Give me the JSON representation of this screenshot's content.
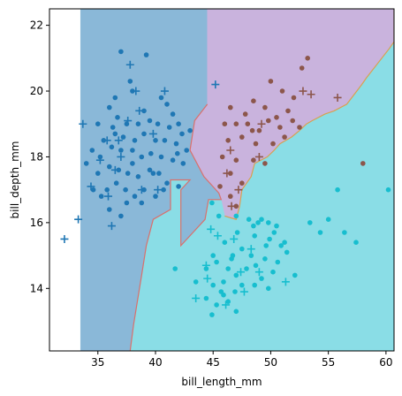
{
  "chart_data": {
    "type": "scatter",
    "title": "",
    "xlabel": "bill_length_mm",
    "ylabel": "bill_depth_mm",
    "xlim": [
      30.8,
      60.7
    ],
    "ylim": [
      12.1,
      22.5
    ],
    "x_ticks": [
      35,
      40,
      45,
      50,
      55,
      60
    ],
    "y_ticks": [
      14,
      16,
      18,
      20,
      22
    ],
    "grid": false,
    "legend": "none",
    "decision_regions": [
      {
        "color": "#8ab8d8",
        "polygon": [
          [
            33.5,
            12.1
          ],
          [
            33.5,
            22.5
          ],
          [
            44.5,
            22.5
          ],
          [
            44.5,
            19.6
          ],
          [
            43.4,
            19.1
          ],
          [
            43.0,
            18.2
          ],
          [
            44.2,
            17.4
          ],
          [
            45.5,
            16.9
          ],
          [
            45.7,
            16.7
          ],
          [
            44.6,
            16.7
          ],
          [
            44.3,
            16.1
          ],
          [
            42.2,
            15.3
          ],
          [
            42.2,
            17.0
          ],
          [
            43.0,
            17.3
          ],
          [
            41.3,
            17.3
          ],
          [
            41.3,
            16.4
          ],
          [
            39.8,
            16.1
          ],
          [
            39.2,
            15.3
          ],
          [
            38.8,
            14.4
          ],
          [
            38.1,
            12.9
          ],
          [
            37.8,
            12.1
          ]
        ]
      },
      {
        "color": "#c9b3dd",
        "polygon": [
          [
            44.5,
            22.5
          ],
          [
            46.5,
            22.5
          ],
          [
            46.7,
            22.5
          ],
          [
            60.7,
            22.5
          ],
          [
            60.7,
            21.5
          ],
          [
            60.3,
            21.3
          ],
          [
            58.3,
            20.4
          ],
          [
            57.9,
            20.2
          ],
          [
            56.6,
            19.6
          ],
          [
            55.5,
            19.4
          ],
          [
            54.7,
            19.3
          ],
          [
            53.6,
            19.1
          ],
          [
            53.1,
            19.0
          ],
          [
            52.5,
            18.8
          ],
          [
            51.8,
            18.6
          ],
          [
            50.8,
            18.4
          ],
          [
            50.3,
            18.2
          ],
          [
            49.7,
            18.0
          ],
          [
            48.6,
            17.8
          ],
          [
            48.3,
            17.4
          ],
          [
            47.5,
            17.0
          ],
          [
            47.3,
            16.5
          ],
          [
            47.0,
            16.1
          ],
          [
            46.0,
            16.2
          ],
          [
            45.5,
            16.9
          ],
          [
            44.2,
            17.4
          ],
          [
            43.0,
            18.2
          ],
          [
            43.4,
            19.1
          ],
          [
            44.5,
            19.6
          ]
        ]
      },
      {
        "color": "#8adde6",
        "polygon": [
          [
            37.8,
            12.1
          ],
          [
            38.1,
            12.9
          ],
          [
            38.8,
            14.4
          ],
          [
            39.2,
            15.3
          ],
          [
            39.8,
            16.1
          ],
          [
            41.3,
            16.4
          ],
          [
            41.3,
            17.3
          ],
          [
            43.0,
            17.3
          ],
          [
            42.2,
            17.0
          ],
          [
            42.2,
            15.3
          ],
          [
            44.3,
            16.1
          ],
          [
            44.6,
            16.7
          ],
          [
            45.7,
            16.7
          ],
          [
            46.0,
            16.2
          ],
          [
            47.0,
            16.1
          ],
          [
            47.3,
            16.5
          ],
          [
            47.5,
            17.0
          ],
          [
            48.3,
            17.4
          ],
          [
            48.6,
            17.8
          ],
          [
            49.7,
            18.0
          ],
          [
            50.3,
            18.2
          ],
          [
            50.8,
            18.4
          ],
          [
            51.8,
            18.6
          ],
          [
            52.5,
            18.8
          ],
          [
            53.1,
            19.0
          ],
          [
            53.6,
            19.1
          ],
          [
            54.7,
            19.3
          ],
          [
            55.5,
            19.4
          ],
          [
            56.6,
            19.6
          ],
          [
            57.9,
            20.2
          ],
          [
            58.3,
            20.4
          ],
          [
            60.3,
            21.3
          ],
          [
            60.7,
            21.5
          ],
          [
            60.7,
            12.1
          ]
        ]
      }
    ],
    "series": [
      {
        "color": "#1f77b4",
        "points_dot": [
          [
            37.0,
            21.2
          ],
          [
            39.2,
            21.1
          ],
          [
            37.8,
            20.3
          ],
          [
            36.5,
            19.8
          ],
          [
            38.0,
            20.0
          ],
          [
            40.5,
            19.8
          ],
          [
            41.0,
            19.6
          ],
          [
            36.0,
            19.5
          ],
          [
            39.0,
            19.4
          ],
          [
            41.5,
            19.3
          ],
          [
            42.0,
            19.0
          ],
          [
            43.0,
            18.8
          ],
          [
            35.0,
            19.0
          ],
          [
            36.7,
            19.2
          ],
          [
            37.5,
            19.0
          ],
          [
            38.5,
            19.0
          ],
          [
            39.5,
            19.1
          ],
          [
            40.2,
            19.0
          ],
          [
            41.2,
            18.9
          ],
          [
            42.3,
            18.7
          ],
          [
            35.5,
            18.5
          ],
          [
            36.5,
            18.7
          ],
          [
            37.2,
            18.6
          ],
          [
            38.2,
            18.5
          ],
          [
            39.0,
            18.7
          ],
          [
            40.0,
            18.5
          ],
          [
            40.8,
            18.5
          ],
          [
            41.8,
            18.4
          ],
          [
            42.7,
            18.2
          ],
          [
            34.5,
            18.2
          ],
          [
            35.2,
            18.0
          ],
          [
            36.2,
            18.3
          ],
          [
            37.0,
            18.2
          ],
          [
            38.0,
            18.2
          ],
          [
            38.8,
            18.0
          ],
          [
            39.6,
            18.1
          ],
          [
            40.5,
            18.0
          ],
          [
            41.5,
            17.9
          ],
          [
            42.4,
            17.8
          ],
          [
            34.0,
            17.8
          ],
          [
            35.0,
            17.5
          ],
          [
            36.0,
            17.7
          ],
          [
            36.8,
            17.6
          ],
          [
            37.6,
            17.5
          ],
          [
            38.5,
            17.4
          ],
          [
            39.5,
            17.6
          ],
          [
            40.3,
            17.5
          ],
          [
            41.0,
            17.2
          ],
          [
            42.0,
            17.1
          ],
          [
            34.6,
            17.0
          ],
          [
            35.8,
            17.0
          ],
          [
            36.6,
            17.2
          ],
          [
            37.4,
            17.0
          ],
          [
            38.2,
            16.8
          ],
          [
            39.0,
            17.0
          ],
          [
            40.0,
            16.8
          ],
          [
            36.0,
            16.4
          ],
          [
            37.5,
            16.6
          ],
          [
            38.8,
            16.6
          ],
          [
            39.8,
            17.5
          ],
          [
            40.7,
            17.0
          ],
          [
            38.0,
            17.8
          ],
          [
            41.9,
            18.1
          ],
          [
            36.3,
            18.9
          ],
          [
            35.3,
            16.8
          ],
          [
            37.0,
            16.2
          ]
        ],
        "points_plus": [
          [
            37.8,
            20.8
          ],
          [
            38.3,
            20.0
          ],
          [
            40.8,
            20.0
          ],
          [
            37.6,
            19.1
          ],
          [
            38.6,
            19.4
          ],
          [
            33.7,
            19.0
          ],
          [
            35.8,
            18.5
          ],
          [
            36.8,
            18.5
          ],
          [
            37.0,
            18.0
          ],
          [
            35.2,
            17.9
          ],
          [
            36.5,
            17.6
          ],
          [
            38.8,
            17.0
          ],
          [
            40.2,
            17.0
          ],
          [
            34.4,
            17.1
          ],
          [
            35.9,
            16.8
          ],
          [
            33.3,
            16.1
          ],
          [
            36.2,
            15.9
          ],
          [
            32.1,
            15.5
          ],
          [
            45.2,
            20.2
          ],
          [
            39.8,
            18.7
          ]
        ]
      },
      {
        "color": "#8c564b",
        "points_dot": [
          [
            53.2,
            21.0
          ],
          [
            52.7,
            20.7
          ],
          [
            50.0,
            20.3
          ],
          [
            51.0,
            20.0
          ],
          [
            52.0,
            19.8
          ],
          [
            48.5,
            19.7
          ],
          [
            49.5,
            19.5
          ],
          [
            51.5,
            19.4
          ],
          [
            46.5,
            19.5
          ],
          [
            47.0,
            19.0
          ],
          [
            48.0,
            19.0
          ],
          [
            49.8,
            19.1
          ],
          [
            50.8,
            18.9
          ],
          [
            52.5,
            18.9
          ],
          [
            46.3,
            18.5
          ],
          [
            47.5,
            18.6
          ],
          [
            48.7,
            18.4
          ],
          [
            50.2,
            18.4
          ],
          [
            51.2,
            18.6
          ],
          [
            45.8,
            18.0
          ],
          [
            47.0,
            17.9
          ],
          [
            48.5,
            17.9
          ],
          [
            49.5,
            17.8
          ],
          [
            46.5,
            17.5
          ],
          [
            47.5,
            17.2
          ],
          [
            58.0,
            17.8
          ],
          [
            45.6,
            17.1
          ],
          [
            46.5,
            16.8
          ],
          [
            47.0,
            16.5
          ],
          [
            49.0,
            18.8
          ],
          [
            51.9,
            19.1
          ],
          [
            50.5,
            19.2
          ],
          [
            48.4,
            18.8
          ],
          [
            46.0,
            19.0
          ],
          [
            47.8,
            19.3
          ]
        ],
        "points_plus": [
          [
            52.8,
            20.0
          ],
          [
            53.5,
            19.9
          ],
          [
            55.8,
            19.8
          ],
          [
            49.2,
            19.0
          ],
          [
            46.5,
            18.2
          ],
          [
            49.0,
            18.0
          ],
          [
            46.2,
            17.5
          ],
          [
            47.2,
            17.0
          ],
          [
            46.6,
            16.5
          ]
        ]
      },
      {
        "color": "#17becf",
        "points_dot": [
          [
            44.9,
            16.6
          ],
          [
            45.5,
            16.2
          ],
          [
            47.0,
            16.2
          ],
          [
            48.1,
            16.1
          ],
          [
            48.5,
            15.9
          ],
          [
            49.2,
            16.1
          ],
          [
            49.8,
            16.0
          ],
          [
            50.5,
            15.9
          ],
          [
            48.6,
            15.6
          ],
          [
            49.6,
            15.3
          ],
          [
            50.3,
            15.7
          ],
          [
            51.2,
            15.4
          ],
          [
            55.8,
            17.0
          ],
          [
            60.2,
            17.0
          ],
          [
            55.0,
            16.1
          ],
          [
            54.3,
            15.7
          ],
          [
            53.4,
            16.0
          ],
          [
            56.4,
            15.7
          ],
          [
            57.4,
            15.4
          ],
          [
            46.0,
            15.4
          ],
          [
            46.7,
            15.0
          ],
          [
            47.5,
            15.2
          ],
          [
            48.3,
            15.0
          ],
          [
            49.5,
            14.9
          ],
          [
            50.6,
            14.8
          ],
          [
            51.4,
            15.1
          ],
          [
            45.3,
            14.8
          ],
          [
            46.3,
            14.6
          ],
          [
            47.0,
            14.4
          ],
          [
            47.9,
            14.6
          ],
          [
            48.7,
            14.7
          ],
          [
            49.2,
            14.3
          ],
          [
            50.2,
            14.5
          ],
          [
            45.0,
            14.1
          ],
          [
            45.9,
            14.2
          ],
          [
            46.9,
            13.9
          ],
          [
            47.5,
            14.1
          ],
          [
            48.6,
            14.1
          ],
          [
            49.8,
            14.0
          ],
          [
            44.4,
            13.7
          ],
          [
            45.3,
            13.5
          ],
          [
            46.3,
            13.6
          ],
          [
            47.0,
            13.3
          ],
          [
            43.5,
            14.2
          ],
          [
            44.4,
            14.6
          ],
          [
            45.7,
            13.9
          ],
          [
            46.6,
            14.9
          ],
          [
            50.9,
            15.3
          ],
          [
            52.1,
            14.4
          ],
          [
            48.9,
            16.0
          ],
          [
            49.9,
            15.5
          ],
          [
            47.1,
            15.7
          ],
          [
            41.7,
            14.6
          ],
          [
            44.9,
            13.2
          ],
          [
            45.9,
            13.8
          ],
          [
            45.0,
            15.0
          ]
        ],
        "points_plus": [
          [
            44.8,
            15.8
          ],
          [
            46.8,
            15.5
          ],
          [
            48.3,
            15.2
          ],
          [
            44.4,
            14.7
          ],
          [
            47.4,
            14.5
          ],
          [
            49.0,
            14.5
          ],
          [
            51.3,
            14.2
          ],
          [
            43.5,
            13.7
          ],
          [
            46.1,
            13.5
          ],
          [
            44.5,
            14.3
          ],
          [
            47.7,
            13.9
          ],
          [
            45.4,
            15.6
          ]
        ]
      }
    ]
  }
}
